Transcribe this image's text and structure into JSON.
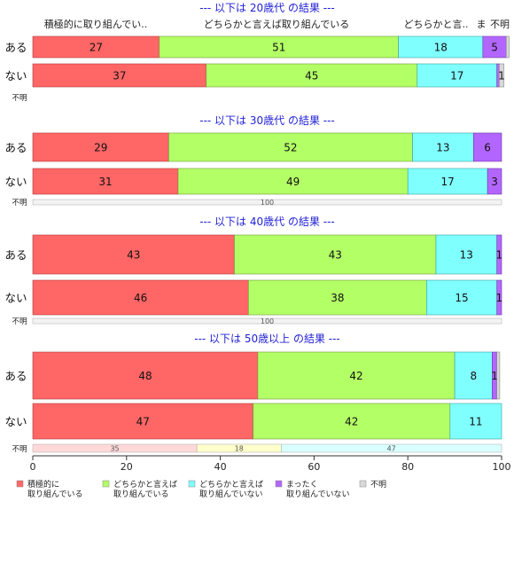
{
  "chart_data": {
    "type": "bar",
    "orientation": "horizontal",
    "stacked": true,
    "xlim": [
      0,
      100
    ],
    "x_ticks": [
      "0",
      "20",
      "40",
      "60",
      "80",
      "100"
    ],
    "legend": {
      "placement": "bottom",
      "entries": [
        {
          "lines": [
            "積極的に",
            "取り組んでいる"
          ],
          "color": "#ff6666"
        },
        {
          "lines": [
            "どちらかと言えば",
            "取り組んでいる"
          ],
          "color": "#b3ff66"
        },
        {
          "lines": [
            "どちらかと言えば",
            "取り組んでいない"
          ],
          "color": "#80ffff"
        },
        {
          "lines": [
            "まったく",
            "取り組んでいない"
          ],
          "color": "#b366ff"
        },
        {
          "lines": [
            "不明"
          ],
          "color": "#d9d9d9"
        }
      ]
    },
    "panels": [
      {
        "title": "--- 以下は 20歳代 の結果 ---",
        "column_headers": [
          "積極的に取り組んでい..",
          "どちらかと言えば取り組んでいる",
          "どちらかと言..",
          "ま",
          "不明"
        ],
        "rows": [
          {
            "label": "ある",
            "values": [
              27,
              51,
              18,
              5,
              0.6
            ],
            "labels": [
              "27",
              "51",
              "18",
              "5",
              ""
            ]
          },
          {
            "label": "ない",
            "values": [
              37,
              45,
              17,
              0.5,
              1
            ],
            "labels": [
              "37",
              "45",
              "17",
              "",
              "1"
            ]
          }
        ],
        "missing_label": "不明",
        "missing_strip": null
      },
      {
        "title": "--- 以下は 30歳代 の結果 ---",
        "column_headers": [],
        "rows": [
          {
            "label": "ある",
            "values": [
              29,
              52,
              13,
              6,
              0
            ],
            "labels": [
              "29",
              "52",
              "13",
              "6",
              ""
            ]
          },
          {
            "label": "ない",
            "values": [
              31,
              49,
              17,
              3,
              0
            ],
            "labels": [
              "31",
              "49",
              "17",
              "3",
              ""
            ]
          }
        ],
        "missing_label": "不明",
        "missing_strip": {
          "values": [
            100
          ],
          "labels": [
            "100"
          ]
        }
      },
      {
        "title": "--- 以下は 40歳代 の結果 ---",
        "column_headers": [],
        "rows": [
          {
            "label": "ある",
            "values": [
              43,
              43,
              13,
              1,
              0
            ],
            "labels": [
              "43",
              "43",
              "13",
              "1",
              ""
            ]
          },
          {
            "label": "ない",
            "values": [
              46,
              38,
              15,
              1,
              0
            ],
            "labels": [
              "46",
              "38",
              "15",
              "1",
              ""
            ]
          }
        ],
        "missing_label": "不明",
        "missing_strip": {
          "values": [
            100
          ],
          "labels": [
            "100"
          ]
        }
      },
      {
        "title": "--- 以下は 50歳以上 の結果 ---",
        "column_headers": [],
        "rows": [
          {
            "label": "ある",
            "values": [
              48,
              42,
              8,
              1,
              0.6
            ],
            "labels": [
              "48",
              "42",
              "8",
              "1",
              ""
            ]
          },
          {
            "label": "ない",
            "values": [
              47,
              42,
              11,
              0,
              0
            ],
            "labels": [
              "47",
              "42",
              "11",
              "",
              ""
            ]
          }
        ],
        "missing_label": "不明",
        "missing_strip": {
          "values": [
            35,
            18,
            47
          ],
          "labels": [
            "35",
            "18",
            "47"
          ]
        }
      }
    ]
  }
}
